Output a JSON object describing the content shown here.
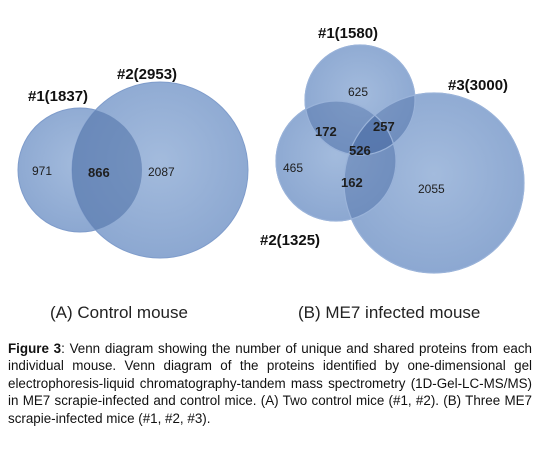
{
  "panels": {
    "a": {
      "caption": "(A) Control mouse",
      "sets": [
        {
          "label": "#1(1837)"
        },
        {
          "label": "#2(2953)"
        }
      ],
      "regions": {
        "only1": "971",
        "shared": "866",
        "only2": "2087"
      }
    },
    "b": {
      "caption": "(B) ME7 infected mouse",
      "sets": [
        {
          "label": "#1(1580)"
        },
        {
          "label": "#2(1325)"
        },
        {
          "label": "#3(3000)"
        }
      ],
      "regions": {
        "only1": "625",
        "only2": "465",
        "only3": "2055",
        "shared12": "172",
        "shared13": "257",
        "shared23": "162",
        "shared123": "526"
      }
    }
  },
  "caption": {
    "figure_label": "Figure 3",
    "text": ": Venn diagram showing the number of unique and shared proteins from each individual mouse. Venn diagram of the proteins identified by one-dimensional gel electrophoresis-liquid chromatography-tandem mass spectrometry (1D-Gel-LC-MS/MS) in ME7 scrapie-infected and control mice. (A) Two control mice (#1, #2). (B) Three ME7 scrapie-infected mice (#1, #2, #3)."
  },
  "colors": {
    "circle_fill": "#8eaad3",
    "overlap_tint": "#3c5f98",
    "outline": "#6f8fc0"
  }
}
